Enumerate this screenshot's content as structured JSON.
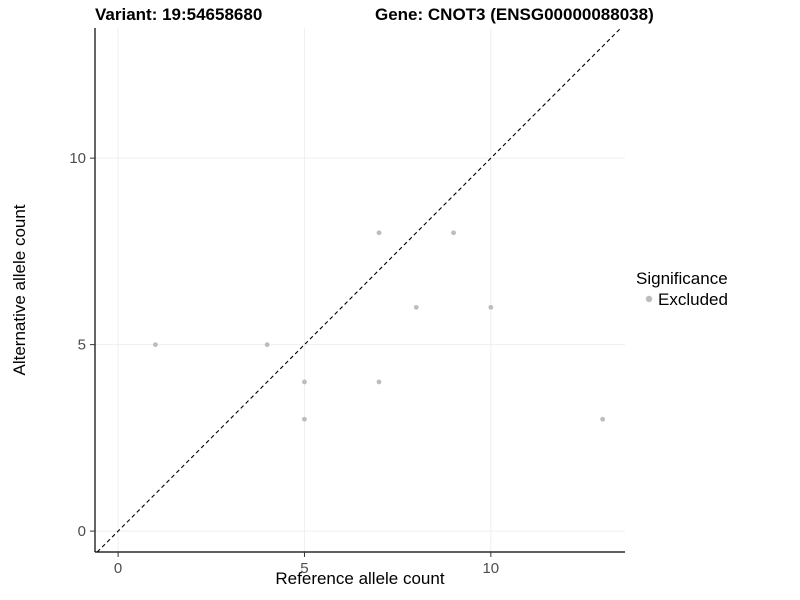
{
  "header": {
    "variant_title": "Variant: 19:54658680",
    "gene_title": "Gene: CNOT3 (ENSG00000088038)"
  },
  "legend": {
    "title": "Significance",
    "items": [
      {
        "label": "Excluded",
        "color": "#bdbdbd"
      }
    ]
  },
  "chart_data": {
    "type": "scatter",
    "title": "Variant: 19:54658680 / Gene: CNOT3 (ENSG00000088038)",
    "xlabel": "Reference allele count",
    "ylabel": "Alternative allele count",
    "xlim": [
      -0.62,
      13.6
    ],
    "ylim": [
      -0.56,
      13.49
    ],
    "x_ticks": [
      0,
      5,
      10
    ],
    "y_ticks": [
      0,
      5,
      10
    ],
    "grid": true,
    "grid_color": "#efefef",
    "identity_line": {
      "style": "dashed",
      "color": "#000000",
      "slope": 1,
      "intercept": 0
    },
    "legend_position": "right",
    "series": [
      {
        "name": "Excluded",
        "color": "#bdbdbd",
        "points": [
          [
            1,
            5
          ],
          [
            4,
            5
          ],
          [
            5,
            4
          ],
          [
            5,
            3
          ],
          [
            7,
            8
          ],
          [
            7,
            4
          ],
          [
            8,
            6
          ],
          [
            9,
            8
          ],
          [
            10,
            6
          ],
          [
            13,
            3
          ]
        ]
      }
    ]
  }
}
